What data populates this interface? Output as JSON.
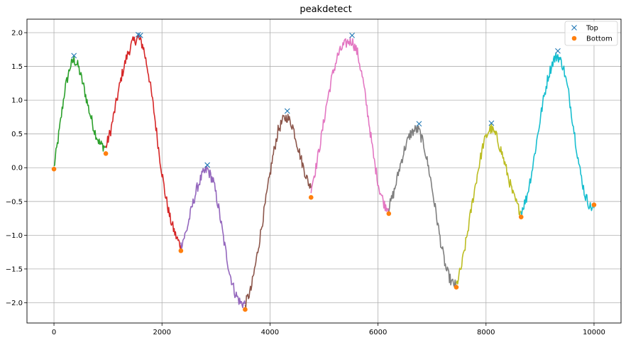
{
  "chart_data": {
    "type": "line",
    "title": "peakdetect",
    "xlabel": "",
    "ylabel": "",
    "xlim": [
      -500,
      10500
    ],
    "ylim": [
      -2.3,
      2.2
    ],
    "grid": true,
    "legend_position": "top-right",
    "x_ticks": [
      0,
      2000,
      4000,
      6000,
      8000,
      10000
    ],
    "y_ticks": [
      -2.0,
      -1.5,
      -1.0,
      -0.5,
      0.0,
      0.5,
      1.0,
      1.5,
      2.0
    ],
    "x_tick_labels": [
      "0",
      "2000",
      "4000",
      "6000",
      "8000",
      "10000"
    ],
    "y_tick_labels": [
      "−2.0",
      "−1.5",
      "−1.0",
      "−0.5",
      "0.0",
      "0.5",
      "1.0",
      "1.5",
      "2.0"
    ],
    "segments": [
      {
        "color": "#2ca02c",
        "points": [
          [
            0,
            0.0
          ],
          [
            100,
            0.55
          ],
          [
            200,
            1.15
          ],
          [
            300,
            1.5
          ],
          [
            370,
            1.6
          ],
          [
            450,
            1.5
          ],
          [
            550,
            1.2
          ],
          [
            650,
            0.85
          ],
          [
            750,
            0.55
          ],
          [
            850,
            0.35
          ],
          [
            960,
            0.3
          ]
        ]
      },
      {
        "color": "#d62728",
        "points": [
          [
            960,
            0.3
          ],
          [
            1050,
            0.55
          ],
          [
            1150,
            0.95
          ],
          [
            1250,
            1.35
          ],
          [
            1350,
            1.65
          ],
          [
            1450,
            1.85
          ],
          [
            1560,
            1.93
          ],
          [
            1650,
            1.8
          ],
          [
            1750,
            1.4
          ],
          [
            1850,
            0.85
          ],
          [
            1950,
            0.2
          ],
          [
            2050,
            -0.35
          ],
          [
            2150,
            -0.75
          ],
          [
            2250,
            -1.0
          ],
          [
            2320,
            -1.12
          ],
          [
            2350,
            -1.15
          ]
        ]
      },
      {
        "color": "#9467bd",
        "points": [
          [
            2350,
            -1.15
          ],
          [
            2450,
            -0.95
          ],
          [
            2550,
            -0.6
          ],
          [
            2650,
            -0.3
          ],
          [
            2750,
            -0.1
          ],
          [
            2840,
            -0.02
          ],
          [
            2950,
            -0.2
          ],
          [
            3050,
            -0.6
          ],
          [
            3150,
            -1.1
          ],
          [
            3250,
            -1.55
          ],
          [
            3350,
            -1.85
          ],
          [
            3450,
            -2.0
          ],
          [
            3540,
            -2.02
          ]
        ]
      },
      {
        "color": "#8c564b",
        "points": [
          [
            3540,
            -2.02
          ],
          [
            3650,
            -1.8
          ],
          [
            3750,
            -1.35
          ],
          [
            3850,
            -0.85
          ],
          [
            3950,
            -0.35
          ],
          [
            4050,
            0.15
          ],
          [
            4150,
            0.55
          ],
          [
            4250,
            0.72
          ],
          [
            4320,
            0.75
          ],
          [
            4420,
            0.62
          ],
          [
            4520,
            0.3
          ],
          [
            4620,
            0.0
          ],
          [
            4700,
            -0.2
          ],
          [
            4760,
            -0.3
          ]
        ]
      },
      {
        "color": "#e377c2",
        "points": [
          [
            4760,
            -0.3
          ],
          [
            4850,
            0.0
          ],
          [
            4950,
            0.45
          ],
          [
            5050,
            0.95
          ],
          [
            5150,
            1.35
          ],
          [
            5250,
            1.65
          ],
          [
            5350,
            1.8
          ],
          [
            5450,
            1.87
          ],
          [
            5520,
            1.88
          ],
          [
            5620,
            1.7
          ],
          [
            5720,
            1.3
          ],
          [
            5820,
            0.75
          ],
          [
            5920,
            0.15
          ],
          [
            6020,
            -0.3
          ],
          [
            6120,
            -0.55
          ],
          [
            6200,
            -0.6
          ]
        ]
      },
      {
        "color": "#7f7f7f",
        "points": [
          [
            6200,
            -0.6
          ],
          [
            6300,
            -0.35
          ],
          [
            6400,
            0.0
          ],
          [
            6500,
            0.3
          ],
          [
            6600,
            0.5
          ],
          [
            6700,
            0.57
          ],
          [
            6760,
            0.55
          ],
          [
            6860,
            0.3
          ],
          [
            6960,
            -0.1
          ],
          [
            7060,
            -0.6
          ],
          [
            7160,
            -1.1
          ],
          [
            7260,
            -1.5
          ],
          [
            7360,
            -1.7
          ],
          [
            7450,
            -1.75
          ]
        ]
      },
      {
        "color": "#bcbd22",
        "points": [
          [
            7450,
            -1.75
          ],
          [
            7550,
            -1.45
          ],
          [
            7650,
            -1.0
          ],
          [
            7750,
            -0.5
          ],
          [
            7850,
            -0.05
          ],
          [
            7950,
            0.35
          ],
          [
            8050,
            0.55
          ],
          [
            8100,
            0.58
          ],
          [
            8200,
            0.45
          ],
          [
            8300,
            0.2
          ],
          [
            8400,
            -0.1
          ],
          [
            8500,
            -0.4
          ],
          [
            8600,
            -0.6
          ],
          [
            8650,
            -0.65
          ]
        ]
      },
      {
        "color": "#17becf",
        "points": [
          [
            8650,
            -0.65
          ],
          [
            8750,
            -0.45
          ],
          [
            8850,
            -0.05
          ],
          [
            8950,
            0.45
          ],
          [
            9050,
            0.95
          ],
          [
            9150,
            1.35
          ],
          [
            9250,
            1.6
          ],
          [
            9330,
            1.66
          ],
          [
            9430,
            1.5
          ],
          [
            9530,
            1.1
          ],
          [
            9630,
            0.55
          ],
          [
            9730,
            0.0
          ],
          [
            9830,
            -0.4
          ],
          [
            9930,
            -0.58
          ],
          [
            10000,
            -0.6
          ]
        ]
      }
    ],
    "series": [
      {
        "name": "Top",
        "marker": "x",
        "color": "#1f77b4",
        "x": [
          370,
          1560,
          1600,
          2840,
          4320,
          5520,
          6760,
          8100,
          9330
        ],
        "y": [
          1.66,
          1.97,
          1.96,
          0.04,
          0.84,
          1.96,
          0.65,
          0.66,
          1.73
        ]
      },
      {
        "name": "Bottom",
        "marker": "o",
        "color": "#ff7f0e",
        "x": [
          0,
          960,
          2350,
          3540,
          4760,
          6200,
          7450,
          8650,
          10000
        ],
        "y": [
          -0.02,
          0.21,
          -1.23,
          -2.1,
          -0.44,
          -0.68,
          -1.77,
          -0.73,
          -0.55
        ]
      }
    ]
  }
}
